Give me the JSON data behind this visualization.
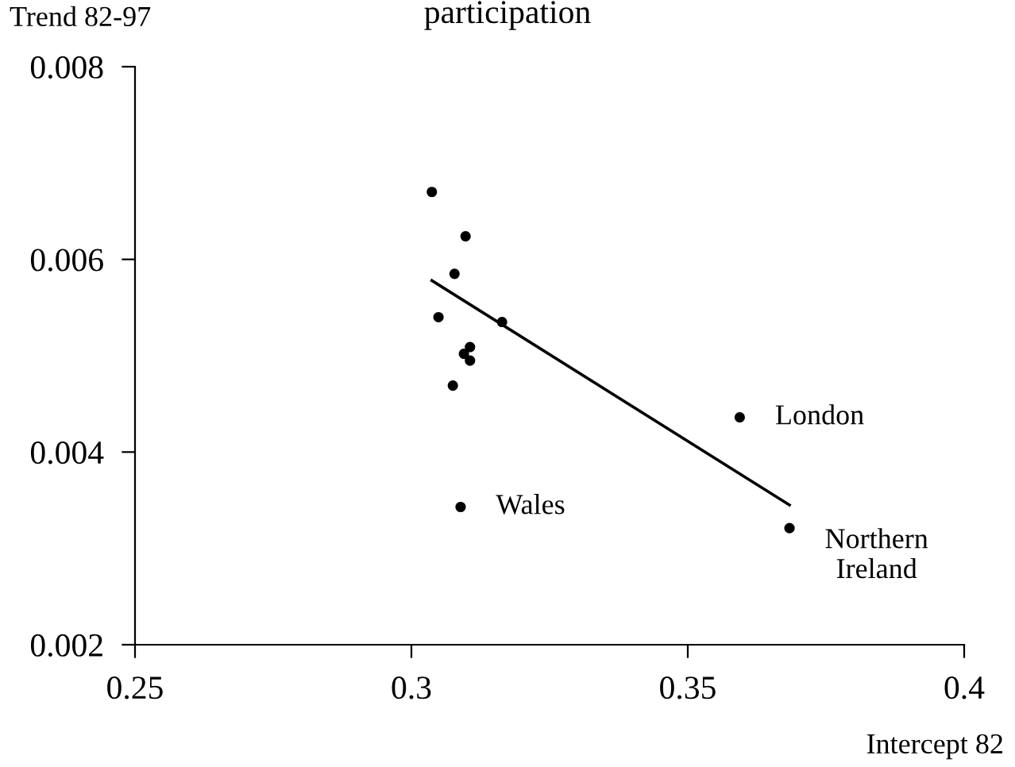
{
  "chart_data": {
    "type": "scatter",
    "title": "participation",
    "xlabel": "Intercept 82",
    "ylabel": "Trend 82-97",
    "xlim": [
      0.25,
      0.4
    ],
    "xticks": [
      0.25,
      0.3,
      0.35,
      0.4
    ],
    "ylim": [
      0.002,
      0.008
    ],
    "yticks": [
      0.002,
      0.004,
      0.006,
      0.008
    ],
    "grid": false,
    "legend": false,
    "series": [
      {
        "marker": "circle",
        "color": "#000000",
        "x": [
          0.3037,
          0.3098,
          0.3078,
          0.3049,
          0.3164,
          0.3095,
          0.3106,
          0.3106,
          0.3075,
          0.3594,
          0.3089,
          0.3684
        ],
        "values": [
          0.0067,
          0.00624,
          0.00585,
          0.0054,
          0.00535,
          0.00502,
          0.00509,
          0.00495,
          0.00469,
          0.00436,
          0.00343,
          0.00321
        ]
      },
      {
        "type": "line",
        "marker": "none",
        "color": "#000000",
        "x": [
          0.3037,
          0.3684
        ],
        "values": [
          0.00578,
          0.00345
        ]
      }
    ],
    "annotations": [
      {
        "text": "London",
        "x": 0.3594,
        "y": 0.00436
      },
      {
        "text": "Wales",
        "x": 0.3089,
        "y": 0.00343
      },
      {
        "text": "Northern\nIreland",
        "x": 0.3684,
        "y": 0.00321
      }
    ]
  }
}
